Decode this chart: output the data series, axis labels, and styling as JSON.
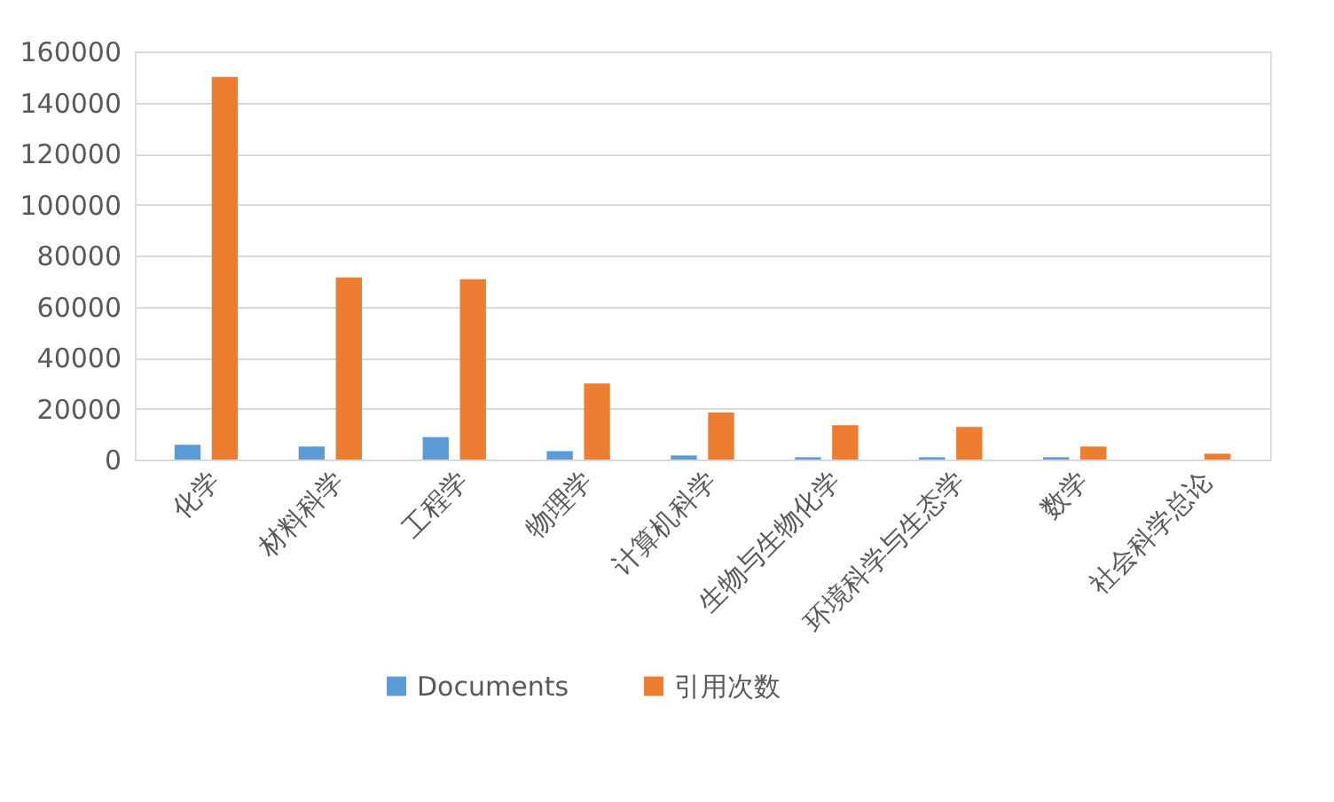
{
  "chart_data": {
    "type": "bar",
    "categories": [
      "化学",
      "材料科学",
      "工程学",
      "物理学",
      "计算机科学",
      "生物与生物化学",
      "环境科学与生态学",
      "数学",
      "社会科学总论"
    ],
    "series": [
      {
        "name": "Documents",
        "color": "#5b9bd5",
        "values": [
          5800,
          5100,
          8800,
          3300,
          1600,
          900,
          900,
          900,
          0
        ]
      },
      {
        "name": "引用次数",
        "color": "#ed7d31",
        "values": [
          150000,
          71400,
          70700,
          29800,
          18400,
          13500,
          12800,
          5100,
          2300
        ]
      }
    ],
    "ylim": [
      0,
      160000
    ],
    "yticks": [
      0,
      20000,
      40000,
      60000,
      80000,
      100000,
      120000,
      140000,
      160000
    ],
    "grid": "y",
    "legend": "bottom"
  }
}
